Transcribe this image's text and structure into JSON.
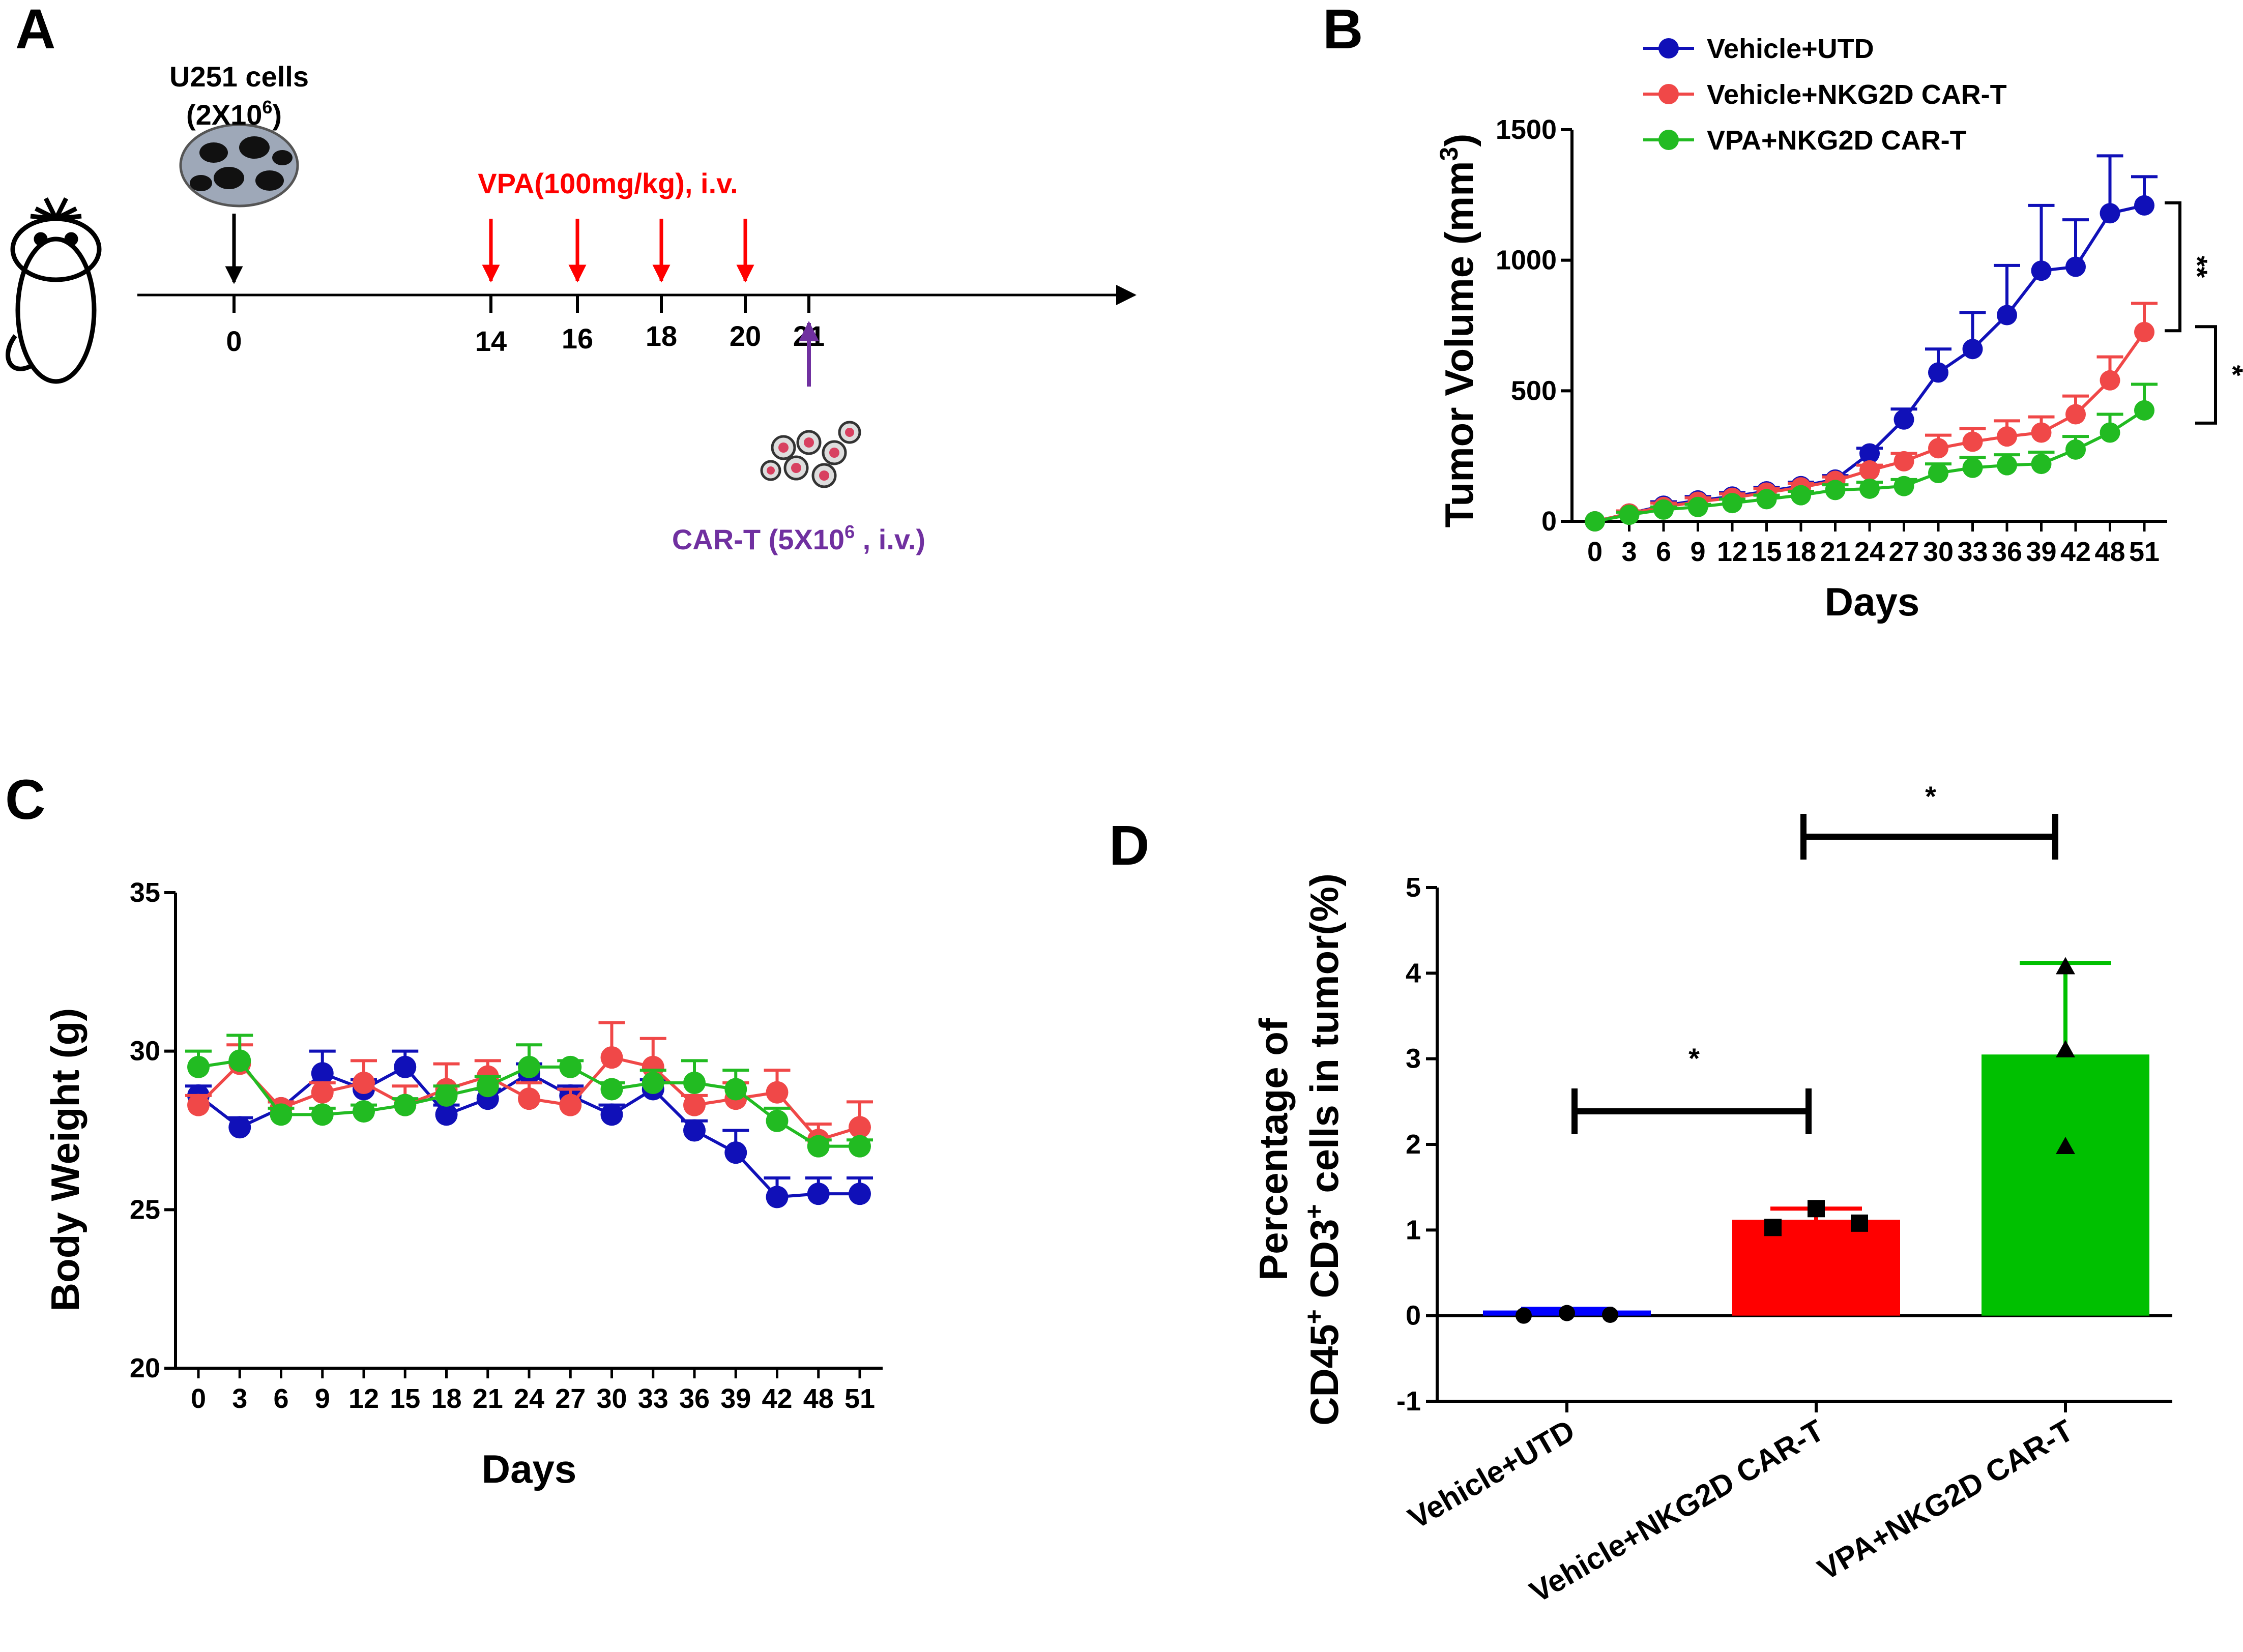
{
  "colors": {
    "blue": "#1010b8",
    "red": "#f04848",
    "green": "#22bb22",
    "bar_blue": "#0000ff",
    "bar_red": "#ff0000",
    "bar_green": "#00c000",
    "purple": "#7030a0",
    "arrow_red": "#ff0000"
  },
  "panel_labels": [
    "A",
    "B",
    "C",
    "D"
  ],
  "schematic": {
    "cells_label": "U251 cells",
    "cells_dose_base": "(2X10",
    "cells_dose_exp": "6",
    "cells_dose_close": ")",
    "vpa_label": "VPA(100mg/kg), i.v.",
    "timeline_days": [
      "0",
      "14",
      "16",
      "18",
      "20",
      "21"
    ],
    "vpa_days": [
      "14",
      "16",
      "18",
      "20"
    ],
    "cart_base": "CAR-T (5X10",
    "cart_exp": "6",
    "cart_suffix": " , i.v.)",
    "icons": [
      "mouse-icon",
      "tumor-cells-icon",
      "car-t-cells-icon"
    ]
  },
  "chart_data": [
    {
      "id": "B",
      "type": "line",
      "ylabel": "Tumor Volume (mm",
      "ylabel_sup": "3",
      "ylabel_close": ")",
      "xlabel": "Days",
      "ylim": [
        0,
        1500
      ],
      "yticks": [
        "0",
        "500",
        "1000",
        "1500"
      ],
      "x": [
        "0",
        "3",
        "6",
        "9",
        "12",
        "15",
        "18",
        "21",
        "24",
        "27",
        "30",
        "33",
        "36",
        "39",
        "42",
        "48",
        "51"
      ],
      "series": [
        {
          "name": "Vehicle+UTD",
          "values": [
            0,
            30,
            60,
            80,
            95,
            115,
            135,
            160,
            260,
            390,
            570,
            660,
            790,
            960,
            975,
            1180,
            1210
          ],
          "err": [
            0,
            10,
            15,
            15,
            15,
            15,
            15,
            15,
            20,
            40,
            90,
            140,
            190,
            250,
            180,
            220,
            110
          ]
        },
        {
          "name": "Vehicle+NKG2D CAR-T",
          "values": [
            0,
            30,
            55,
            75,
            90,
            110,
            130,
            155,
            195,
            230,
            280,
            305,
            325,
            340,
            410,
            540,
            725
          ],
          "err": [
            0,
            10,
            15,
            15,
            15,
            15,
            15,
            15,
            20,
            30,
            50,
            50,
            60,
            60,
            70,
            90,
            110
          ]
        },
        {
          "name": "VPA+NKG2D CAR-T",
          "values": [
            0,
            25,
            45,
            55,
            70,
            85,
            100,
            120,
            125,
            135,
            185,
            205,
            215,
            220,
            275,
            340,
            425
          ],
          "err": [
            0,
            10,
            10,
            10,
            15,
            15,
            15,
            20,
            25,
            25,
            35,
            40,
            40,
            45,
            50,
            70,
            100
          ]
        }
      ],
      "significance": [
        "**",
        "*"
      ]
    },
    {
      "id": "C",
      "type": "line",
      "ylabel": "Body Weight (g)",
      "xlabel": "Days",
      "ylim": [
        20,
        35
      ],
      "yticks": [
        "20",
        "25",
        "30",
        "35"
      ],
      "x": [
        "0",
        "3",
        "6",
        "9",
        "12",
        "15",
        "18",
        "21",
        "24",
        "27",
        "30",
        "33",
        "36",
        "39",
        "42",
        "48",
        "51"
      ],
      "series": [
        {
          "name": "Vehicle+UTD",
          "values": [
            28.6,
            27.6,
            28.2,
            29.3,
            28.8,
            29.5,
            28.0,
            28.5,
            29.3,
            28.6,
            28.0,
            28.8,
            27.5,
            26.8,
            25.4,
            25.5,
            25.5
          ],
          "err": [
            0.3,
            0.3,
            0.2,
            0.7,
            0.3,
            0.5,
            0.3,
            0.3,
            0.3,
            0.3,
            0.3,
            0.3,
            0.3,
            0.7,
            0.6,
            0.5,
            0.5
          ]
        },
        {
          "name": "Vehicle+NKG2D CAR-T",
          "values": [
            28.3,
            29.6,
            28.2,
            28.7,
            29.0,
            28.3,
            28.8,
            29.2,
            28.5,
            28.3,
            29.8,
            29.5,
            28.3,
            28.5,
            28.7,
            27.2,
            27.6
          ],
          "err": [
            0.3,
            0.6,
            0.2,
            0.3,
            0.7,
            0.6,
            0.8,
            0.5,
            0.5,
            0.5,
            1.1,
            0.9,
            0.3,
            0.5,
            0.7,
            0.5,
            0.8
          ]
        },
        {
          "name": "VPA+NKG2D CAR-T",
          "values": [
            29.5,
            29.7,
            28.0,
            28.0,
            28.1,
            28.3,
            28.6,
            28.9,
            29.5,
            29.5,
            28.8,
            29.0,
            29.0,
            28.8,
            27.8,
            27.0,
            27.0
          ],
          "err": [
            0.5,
            0.8,
            0.2,
            0.2,
            0.2,
            0.2,
            0.3,
            0.3,
            0.7,
            0.2,
            0.2,
            0.4,
            0.7,
            0.6,
            0.4,
            0.2,
            0.2
          ]
        }
      ]
    },
    {
      "id": "D",
      "type": "bar",
      "ylabel_line1": "Percentage of",
      "ylabel_line2_a": "CD45",
      "ylabel_line2_b": "+",
      "ylabel_line2_c": " CD3",
      "ylabel_line2_d": "+",
      "ylabel_line2_e": " cells in tumor(%)",
      "ylim": [
        -1,
        5
      ],
      "yticks": [
        "-1",
        "0",
        "1",
        "2",
        "3",
        "4",
        "5"
      ],
      "categories": [
        "Vehicle+UTD",
        "Vehicle+NKG2D CAR-T",
        "VPA+NKG2D CAR-T"
      ],
      "values": [
        0.06,
        1.12,
        3.05
      ],
      "err": [
        0.02,
        0.13,
        1.07
      ],
      "points": [
        [
          0.0,
          0.03,
          0.01
        ],
        [
          1.03,
          1.25,
          1.08
        ],
        [
          1.97,
          3.1,
          4.07
        ]
      ],
      "significance": [
        "*",
        "*"
      ]
    }
  ]
}
